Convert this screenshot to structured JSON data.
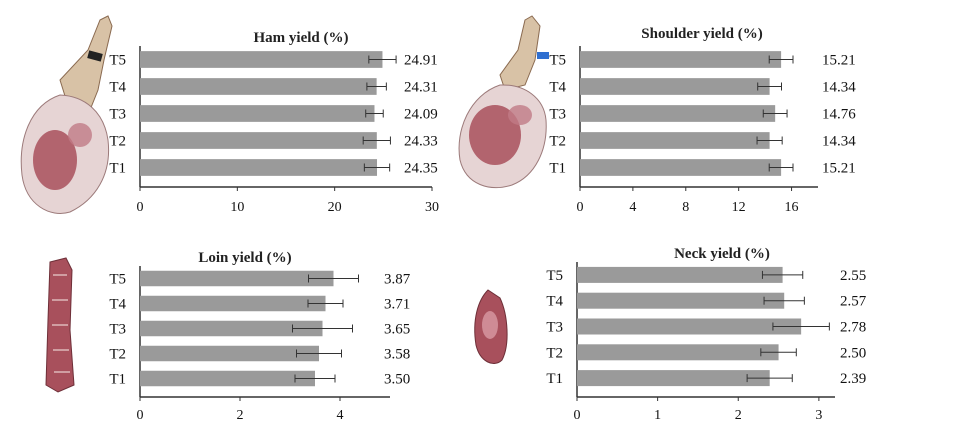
{
  "colors": {
    "bar": "#9a9a9a",
    "axis": "#333333",
    "text": "#111111",
    "meat": "#a8505c"
  },
  "images": {
    "ham": "ham-cut-photo-icon",
    "shoulder": "shoulder-cut-photo-icon",
    "loin": "loin-cut-photo-icon",
    "neck": "neck-cut-photo-icon"
  },
  "chart_data": [
    {
      "type": "bar",
      "orientation": "horizontal",
      "title": "Ham yield (%)",
      "categories": [
        "T1",
        "T2",
        "T3",
        "T4",
        "T5"
      ],
      "values": [
        24.35,
        24.33,
        24.09,
        24.31,
        24.91
      ],
      "value_labels": [
        "24.35",
        "24.33",
        "24.09",
        "24.31",
        "24.91"
      ],
      "errors": [
        1.3,
        1.4,
        0.9,
        1.0,
        1.4
      ],
      "xlim": [
        0,
        30
      ],
      "xticks": [
        0,
        10,
        20,
        30
      ]
    },
    {
      "type": "bar",
      "orientation": "horizontal",
      "title": "Shoulder yield (%)",
      "categories": [
        "T1",
        "T2",
        "T3",
        "T4",
        "T5"
      ],
      "values": [
        15.21,
        14.34,
        14.76,
        14.34,
        15.21
      ],
      "value_labels": [
        "15.21",
        "14.34",
        "14.76",
        "14.34",
        "15.21"
      ],
      "errors": [
        0.9,
        0.95,
        0.9,
        0.9,
        0.9
      ],
      "xlim": [
        0,
        18
      ],
      "xticks": [
        0,
        4,
        8,
        12,
        16
      ]
    },
    {
      "type": "bar",
      "orientation": "horizontal",
      "title": "Loin yield (%)",
      "categories": [
        "T1",
        "T2",
        "T3",
        "T4",
        "T5"
      ],
      "values": [
        3.5,
        3.58,
        3.65,
        3.71,
        3.87
      ],
      "value_labels": [
        "3.50",
        "3.58",
        "3.65",
        "3.71",
        "3.87"
      ],
      "errors": [
        0.4,
        0.45,
        0.6,
        0.35,
        0.5
      ],
      "xlim": [
        0,
        5
      ],
      "xticks": [
        0,
        2,
        4
      ]
    },
    {
      "type": "bar",
      "orientation": "horizontal",
      "title": "Neck yield (%)",
      "categories": [
        "T1",
        "T2",
        "T3",
        "T4",
        "T5"
      ],
      "values": [
        2.39,
        2.5,
        2.78,
        2.57,
        2.55
      ],
      "value_labels": [
        "2.39",
        "2.50",
        "2.78",
        "2.57",
        "2.55"
      ],
      "errors": [
        0.28,
        0.22,
        0.35,
        0.25,
        0.25
      ],
      "xlim": [
        0,
        3.2
      ],
      "xticks": [
        0,
        1,
        2,
        3
      ]
    }
  ]
}
